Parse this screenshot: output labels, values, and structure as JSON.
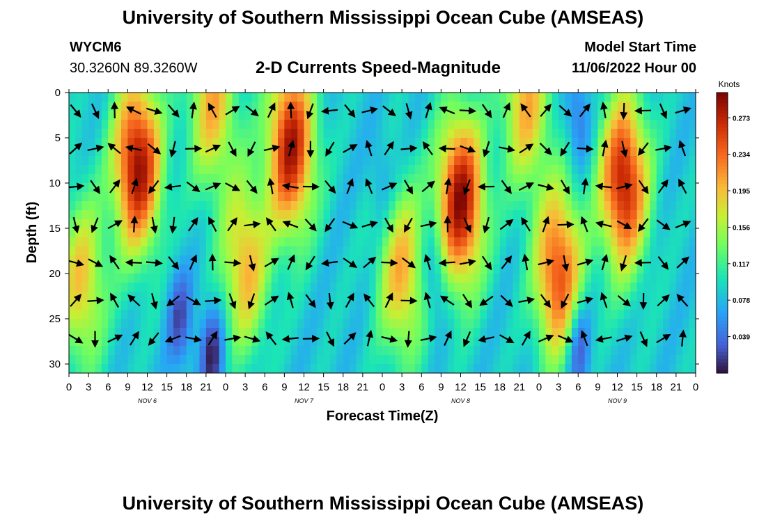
{
  "header": {
    "title": "University of Southern Mississippi Ocean Cube (AMSEAS)",
    "station": "WYCM6",
    "location": "30.3260N  89.3260W",
    "subtitle": "2-D Currents Speed-Magnitude",
    "model_start_label": "Model Start Time",
    "model_start_value": "11/06/2022 Hour 00"
  },
  "footer": {
    "title": "University of Southern Mississippi Ocean Cube (AMSEAS)"
  },
  "chart_data": {
    "type": "heatmap",
    "xlabel": "Forecast Time(Z)",
    "ylabel": "Depth (ft)",
    "x_ticks": [
      "0",
      "3",
      "6",
      "9",
      "12",
      "15",
      "18",
      "21",
      "0",
      "3",
      "6",
      "9",
      "12",
      "15",
      "18",
      "21",
      "0",
      "3",
      "6",
      "9",
      "12",
      "15",
      "18",
      "21",
      "0",
      "3",
      "6",
      "9",
      "12",
      "15",
      "18",
      "21",
      "0"
    ],
    "date_labels": [
      "NOV 6",
      "NOV 7",
      "NOV 8",
      "NOV 9"
    ],
    "x_range_hours": [
      0,
      96
    ],
    "y_ticks": [
      0,
      5,
      10,
      15,
      20,
      25,
      30
    ],
    "y_range": [
      0,
      31
    ],
    "y_inverted": true,
    "colorbar": {
      "label": "Knots",
      "ticks": [
        0.039,
        0.078,
        0.117,
        0.156,
        0.195,
        0.234,
        0.273
      ],
      "range": [
        0.0,
        0.3
      ]
    },
    "speed_peaks": [
      {
        "hour": 10.5,
        "depth": 8,
        "speed": 0.29
      },
      {
        "hour": 2,
        "depth": 21,
        "speed": 0.19
      },
      {
        "hour": 22,
        "depth": 1,
        "speed": 0.2
      },
      {
        "hour": 27,
        "depth": 19,
        "speed": 0.2
      },
      {
        "hour": 34,
        "depth": 6,
        "speed": 0.28
      },
      {
        "hour": 51,
        "depth": 20,
        "speed": 0.2
      },
      {
        "hour": 60,
        "depth": 12,
        "speed": 0.29
      },
      {
        "hour": 70,
        "depth": 1,
        "speed": 0.2
      },
      {
        "hour": 75,
        "depth": 20,
        "speed": 0.25
      },
      {
        "hour": 85,
        "depth": 10,
        "speed": 0.28
      }
    ],
    "speed_minima": [
      {
        "hour": 17,
        "depth": 25,
        "speed": 0.02
      },
      {
        "hour": 22,
        "depth": 29,
        "speed": 0.0
      },
      {
        "hour": 48,
        "depth": 10,
        "speed": 0.05
      },
      {
        "hour": 56,
        "depth": 20,
        "speed": 0.03
      },
      {
        "hour": 78,
        "depth": 28,
        "speed": 0.0
      },
      {
        "hour": 78,
        "depth": 3,
        "speed": 0.03
      }
    ],
    "vectors_note": "current direction arrows every 3 hours at depths 3-30 ft"
  }
}
